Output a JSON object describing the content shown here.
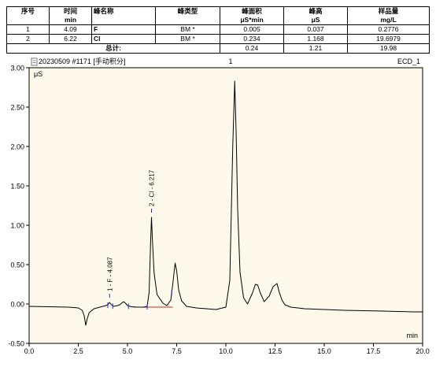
{
  "table": {
    "headers": [
      "序号",
      "时间",
      "峰名称",
      "峰类型",
      "峰面积",
      "峰高",
      "样品量"
    ],
    "units": [
      "",
      "min",
      "",
      "",
      "μS*min",
      "μS",
      "mg/L"
    ],
    "rows": [
      [
        "1",
        "4.09",
        "F",
        "BM *",
        "0.005",
        "0.037",
        "0.2776"
      ],
      [
        "2",
        "6.22",
        "Cl",
        "BM *",
        "0.234",
        "1.168",
        "19.6979"
      ]
    ],
    "total": {
      "label": "总计:",
      "area": "0.24",
      "height": "1.21",
      "amount": "19.98"
    }
  },
  "chart_header": {
    "left": "20230509 #1171 [手动积分]",
    "center": "1",
    "right": "ECD_1"
  },
  "chart_data": {
    "type": "line",
    "ylabel": "μS",
    "xlabel": "min",
    "xlim": [
      0.0,
      20.0
    ],
    "ylim": [
      -0.5,
      3.0
    ],
    "xticks": [
      "0.0",
      "2.5",
      "5.0",
      "7.5",
      "10.0",
      "12.5",
      "15.0",
      "17.5",
      "20.0"
    ],
    "yticks": [
      "-0.50",
      "0.00",
      "0.50",
      "1.00",
      "1.50",
      "2.00",
      "2.50",
      "3.00"
    ],
    "grid": false,
    "colors": {
      "trace": "#000000",
      "plot_bg": "#fdf9ea",
      "marker": "#2a2ad8",
      "baseline": "#e02020"
    },
    "baseline": {
      "x": [
        0.0,
        20.0
      ],
      "y": [
        -0.04,
        -0.04
      ]
    },
    "series": [
      {
        "x": [
          0.0,
          1.0,
          2.0,
          2.5,
          2.7,
          2.8,
          2.88,
          2.95,
          3.05,
          3.3,
          3.6,
          3.9,
          4.0,
          4.09,
          4.18,
          4.3,
          4.5,
          4.6,
          4.8,
          4.9,
          5.0,
          5.2,
          5.5,
          5.8,
          6.0,
          6.1,
          6.17,
          6.22,
          6.26,
          6.35,
          6.5,
          6.8,
          7.0,
          7.2,
          7.3,
          7.42,
          7.5,
          7.6,
          7.75,
          8.0,
          8.5,
          9.0,
          9.5,
          10.0,
          10.2,
          10.35,
          10.45,
          10.52,
          10.6,
          10.72,
          10.9,
          11.1,
          11.35,
          11.5,
          11.62,
          11.75,
          11.95,
          12.2,
          12.4,
          12.6,
          12.7,
          12.85,
          13.0,
          13.3,
          14.0,
          16.0,
          18.0,
          19.5,
          20.0
        ],
        "y": [
          -0.03,
          -0.035,
          -0.04,
          -0.05,
          -0.08,
          -0.15,
          -0.27,
          -0.19,
          -0.11,
          -0.06,
          -0.04,
          -0.02,
          -0.01,
          0.02,
          -0.01,
          -0.03,
          -0.02,
          -0.01,
          0.03,
          0.01,
          -0.02,
          -0.035,
          -0.04,
          -0.04,
          -0.03,
          0.15,
          0.75,
          1.1,
          0.85,
          0.4,
          0.12,
          0.01,
          -0.02,
          0.05,
          0.25,
          0.52,
          0.42,
          0.18,
          0.04,
          -0.03,
          -0.05,
          -0.06,
          -0.07,
          -0.04,
          0.3,
          2.0,
          2.83,
          2.2,
          1.2,
          0.4,
          0.08,
          0.0,
          0.14,
          0.25,
          0.24,
          0.14,
          0.03,
          0.1,
          0.22,
          0.26,
          0.16,
          0.05,
          -0.01,
          -0.04,
          -0.06,
          -0.08,
          -0.09,
          -0.1,
          -0.1
        ]
      }
    ],
    "peak_labels": [
      {
        "text": "1 - F - 4.087",
        "x": 4.09
      },
      {
        "text": "2 - Cl - 6.217",
        "x": 6.22
      }
    ]
  }
}
